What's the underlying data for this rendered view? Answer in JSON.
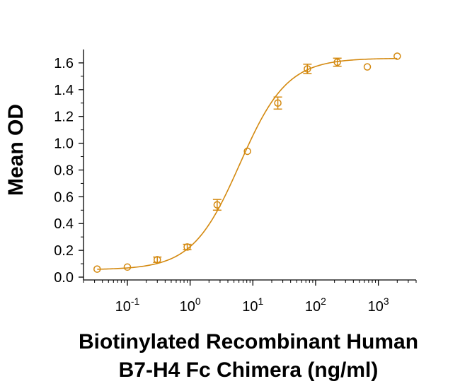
{
  "chart_data": {
    "type": "scatter",
    "title": "",
    "xlabel_lines": [
      "Biotinylated Recombinant Human",
      "B7-H4 Fc Chimera (ng/ml)"
    ],
    "ylabel": "Mean OD",
    "x_scale": "log",
    "xlim": [
      0.02,
      4000
    ],
    "ylim": [
      0,
      1.7
    ],
    "x_ticks": [
      {
        "value": 0.1,
        "base": "10",
        "exp": "-1"
      },
      {
        "value": 1,
        "base": "10",
        "exp": "0"
      },
      {
        "value": 10,
        "base": "10",
        "exp": "1"
      },
      {
        "value": 100,
        "base": "10",
        "exp": "2"
      },
      {
        "value": 1000,
        "base": "10",
        "exp": "3"
      }
    ],
    "y_ticks": [
      "0.0",
      "0.2",
      "0.4",
      "0.6",
      "0.8",
      "1.0",
      "1.2",
      "1.4",
      "1.6"
    ],
    "grid": false,
    "color": "#D4890F",
    "points": [
      {
        "x": 0.033,
        "y": 0.06,
        "err": 0.0
      },
      {
        "x": 0.1,
        "y": 0.075,
        "err": 0.0
      },
      {
        "x": 0.3,
        "y": 0.13,
        "err": 0.02
      },
      {
        "x": 0.9,
        "y": 0.225,
        "err": 0.02
      },
      {
        "x": 2.7,
        "y": 0.54,
        "err": 0.04
      },
      {
        "x": 8.2,
        "y": 0.94,
        "err": 0.0
      },
      {
        "x": 25,
        "y": 1.3,
        "err": 0.045
      },
      {
        "x": 74,
        "y": 1.555,
        "err": 0.035
      },
      {
        "x": 222,
        "y": 1.605,
        "err": 0.03
      },
      {
        "x": 667,
        "y": 1.57,
        "err": 0.0
      },
      {
        "x": 2000,
        "y": 1.65,
        "err": 0.0
      }
    ],
    "fit": {
      "bottom": 0.055,
      "top": 1.635,
      "ec50": 6.2,
      "hill": 1.15
    }
  }
}
